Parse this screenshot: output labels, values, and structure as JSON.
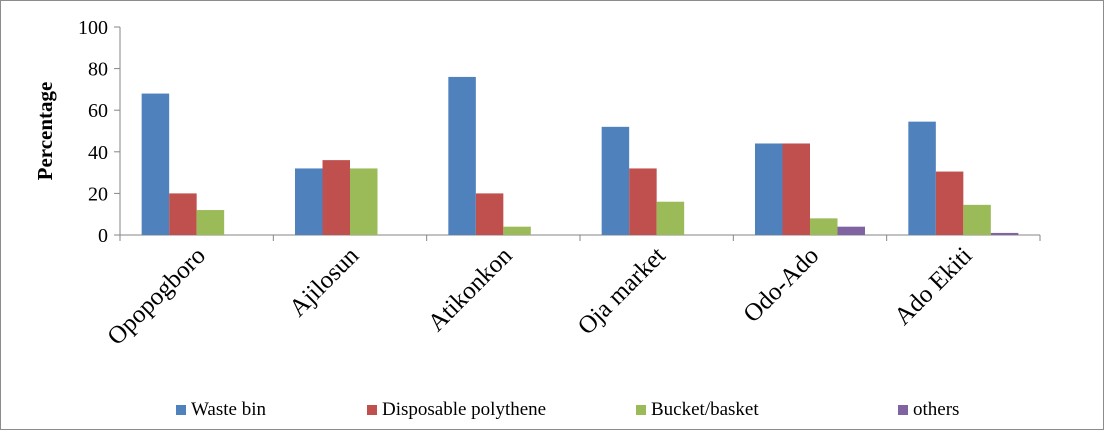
{
  "chart_data": {
    "type": "bar",
    "title": "",
    "xlabel": "",
    "ylabel": "Percentage",
    "ylim": [
      0,
      100
    ],
    "yticks": [
      0,
      20,
      40,
      60,
      80,
      100
    ],
    "grid": false,
    "legend_position": "bottom",
    "categories": [
      "Opopogboro",
      "Ajilosun",
      "Atikonkon",
      "Oja market",
      "Odo-Ado",
      "Ado Ekiti"
    ],
    "series": [
      {
        "name": "Waste bin",
        "color": "#4f81bd",
        "values": [
          68,
          32,
          76,
          52,
          44,
          54.5
        ]
      },
      {
        "name": "Disposable polythene",
        "color": "#c0504d",
        "values": [
          20,
          36,
          20,
          32,
          44,
          30.5
        ]
      },
      {
        "name": "Bucket/basket",
        "color": "#9bbb59",
        "values": [
          12,
          32,
          4,
          16,
          8,
          14.5
        ]
      },
      {
        "name": "others",
        "color": "#8064a2",
        "values": [
          0,
          0,
          0,
          0,
          4,
          1
        ]
      }
    ]
  }
}
